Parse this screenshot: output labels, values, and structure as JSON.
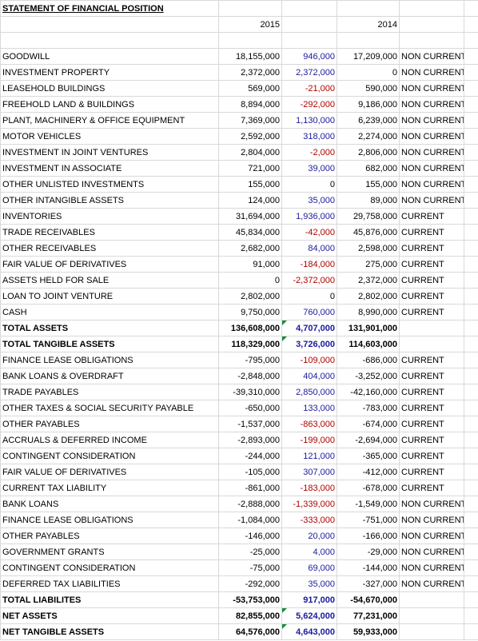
{
  "header": {
    "title": "STATEMENT OF FINANCIAL POSITION",
    "years": [
      "2015",
      "2014"
    ]
  },
  "table": {
    "rows": [
      {
        "cells": [
          "GOODWILL",
          "18,155,000",
          "946,000",
          "17,209,000",
          "NON CURRENT"
        ]
      },
      {
        "cells": [
          "INVESTMENT PROPERTY",
          "2,372,000",
          "2,372,000",
          "0",
          "NON CURRENT"
        ]
      },
      {
        "cells": [
          "LEASEHOLD BUILDINGS",
          "569,000",
          "-21,000",
          "590,000",
          "NON CURRENT"
        ]
      },
      {
        "cells": [
          "FREEHOLD LAND & BUILDINGS",
          "8,894,000",
          "-292,000",
          "9,186,000",
          "NON CURRENT"
        ]
      },
      {
        "cells": [
          "PLANT, MACHINERY & OFFICE EQUIPMENT",
          "7,369,000",
          "1,130,000",
          "6,239,000",
          "NON CURRENT"
        ]
      },
      {
        "cells": [
          "MOTOR VEHICLES",
          "2,592,000",
          "318,000",
          "2,274,000",
          "NON CURRENT"
        ]
      },
      {
        "cells": [
          "INVESTMENT IN JOINT VENTURES",
          "2,804,000",
          "-2,000",
          "2,806,000",
          "NON CURRENT"
        ]
      },
      {
        "cells": [
          "INVESTMENT IN ASSOCIATE",
          "721,000",
          "39,000",
          "682,000",
          "NON CURRENT"
        ]
      },
      {
        "cells": [
          "OTHER UNLISTED INVESTMENTS",
          "155,000",
          "0",
          "155,000",
          "NON CURRENT"
        ]
      },
      {
        "cells": [
          "OTHER INTANGIBLE ASSETS",
          "124,000",
          "35,000",
          "89,000",
          "NON CURRENT"
        ]
      },
      {
        "cells": [
          "INVENTORIES",
          "31,694,000",
          "1,936,000",
          "29,758,000",
          "CURRENT"
        ]
      },
      {
        "cells": [
          "TRADE RECEIVABLES",
          "45,834,000",
          "-42,000",
          "45,876,000",
          "CURRENT"
        ]
      },
      {
        "cells": [
          "OTHER RECEIVABLES",
          "2,682,000",
          "84,000",
          "2,598,000",
          "CURRENT"
        ]
      },
      {
        "cells": [
          "FAIR VALUE OF DERIVATIVES",
          "91,000",
          "-184,000",
          "275,000",
          "CURRENT"
        ]
      },
      {
        "cells": [
          "ASSETS HELD FOR SALE",
          "0",
          "-2,372,000",
          "2,372,000",
          "CURRENT"
        ]
      },
      {
        "cells": [
          "LOAN TO JOINT VENTURE",
          "2,802,000",
          "0",
          "2,802,000",
          "CURRENT"
        ]
      },
      {
        "cells": [
          "CASH",
          "9,750,000",
          "760,000",
          "8,990,000",
          "CURRENT"
        ]
      },
      {
        "cells": [
          "TOTAL ASSETS",
          "136,608,000",
          "4,707,000",
          "131,901,000"
        ],
        "bold": true,
        "flag": true
      },
      {
        "cells": [
          "TOTAL TANGIBLE ASSETS",
          "118,329,000",
          "3,726,000",
          "114,603,000"
        ],
        "bold": true,
        "flag": true
      },
      {
        "cells": [
          "FINANCE LEASE OBLIGATIONS",
          "-795,000",
          "-109,000",
          "-686,000",
          "CURRENT"
        ]
      },
      {
        "cells": [
          "BANK LOANS & OVERDRAFT",
          "-2,848,000",
          "404,000",
          "-3,252,000",
          "CURRENT"
        ]
      },
      {
        "cells": [
          "TRADE PAYABLES",
          "-39,310,000",
          "2,850,000",
          "-42,160,000",
          "CURRENT"
        ]
      },
      {
        "cells": [
          "OTHER TAXES & SOCIAL SECURITY PAYABLE",
          "-650,000",
          "133,000",
          "-783,000",
          "CURRENT"
        ]
      },
      {
        "cells": [
          "OTHER PAYABLES",
          "-1,537,000",
          "-863,000",
          "-674,000",
          "CURRENT"
        ]
      },
      {
        "cells": [
          "ACCRUALS & DEFERRED INCOME",
          "-2,893,000",
          "-199,000",
          "-2,694,000",
          "CURRENT"
        ]
      },
      {
        "cells": [
          "CONTINGENT CONSIDERATION",
          "-244,000",
          "121,000",
          "-365,000",
          "CURRENT"
        ]
      },
      {
        "cells": [
          "FAIR VALUE OF DERIVATIVES",
          "-105,000",
          "307,000",
          "-412,000",
          "CURRENT"
        ]
      },
      {
        "cells": [
          "CURRENT TAX LIABILITY",
          "-861,000",
          "-183,000",
          "-678,000",
          "CURRENT"
        ]
      },
      {
        "cells": [
          "BANK LOANS",
          "-2,888,000",
          "-1,339,000",
          "-1,549,000",
          "NON CURRENT"
        ]
      },
      {
        "cells": [
          "FINANCE LEASE OBLIGATIONS",
          "-1,084,000",
          "-333,000",
          "-751,000",
          "NON CURRENT"
        ]
      },
      {
        "cells": [
          "OTHER PAYABLES",
          "-146,000",
          "20,000",
          "-166,000",
          "NON CURRENT"
        ]
      },
      {
        "cells": [
          "GOVERNMENT GRANTS",
          "-25,000",
          "4,000",
          "-29,000",
          "NON CURRENT"
        ]
      },
      {
        "cells": [
          "CONTINGENT CONSIDERATION",
          "-75,000",
          "69,000",
          "-144,000",
          "NON CURRENT"
        ]
      },
      {
        "cells": [
          "DEFERRED TAX LIABILITIES",
          "-292,000",
          "35,000",
          "-327,000",
          "NON CURRENT"
        ]
      },
      {
        "cells": [
          "TOTAL LIABILITES",
          "-53,753,000",
          "917,000",
          "-54,670,000"
        ],
        "bold": true
      },
      {
        "cells": [
          "NET ASSETS",
          "82,855,000",
          "5,624,000",
          "77,231,000"
        ],
        "bold": true,
        "flag": true
      },
      {
        "cells": [
          "NET TANGIBLE ASSETS",
          "64,576,000",
          "4,643,000",
          "59,933,000"
        ],
        "bold": true,
        "flag": true
      }
    ]
  }
}
